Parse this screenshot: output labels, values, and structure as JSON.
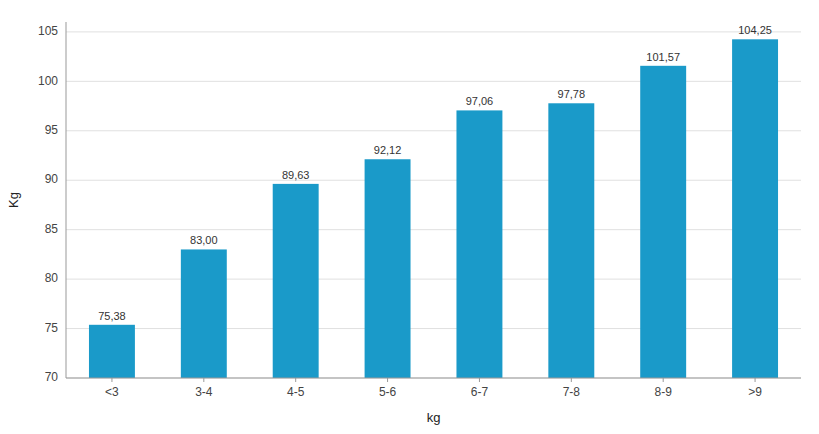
{
  "chart_data": {
    "type": "bar",
    "categories": [
      "<3",
      "3-4",
      "4-5",
      "5-6",
      "6-7",
      "7-8",
      "8-9",
      ">9"
    ],
    "values": [
      75.38,
      83.0,
      89.63,
      92.12,
      97.06,
      97.78,
      101.57,
      104.25
    ],
    "value_labels": [
      "75,38",
      "83,00",
      "89,63",
      "92,12",
      "97,06",
      "97,78",
      "101,57",
      "104,25"
    ],
    "data_labels": true,
    "color": "#1a9ac9",
    "xlabel": "kg",
    "ylabel": "Kg",
    "ylim": [
      70,
      106
    ],
    "yticks": [
      70,
      75,
      80,
      85,
      90,
      95,
      100,
      105
    ],
    "grid": true
  }
}
